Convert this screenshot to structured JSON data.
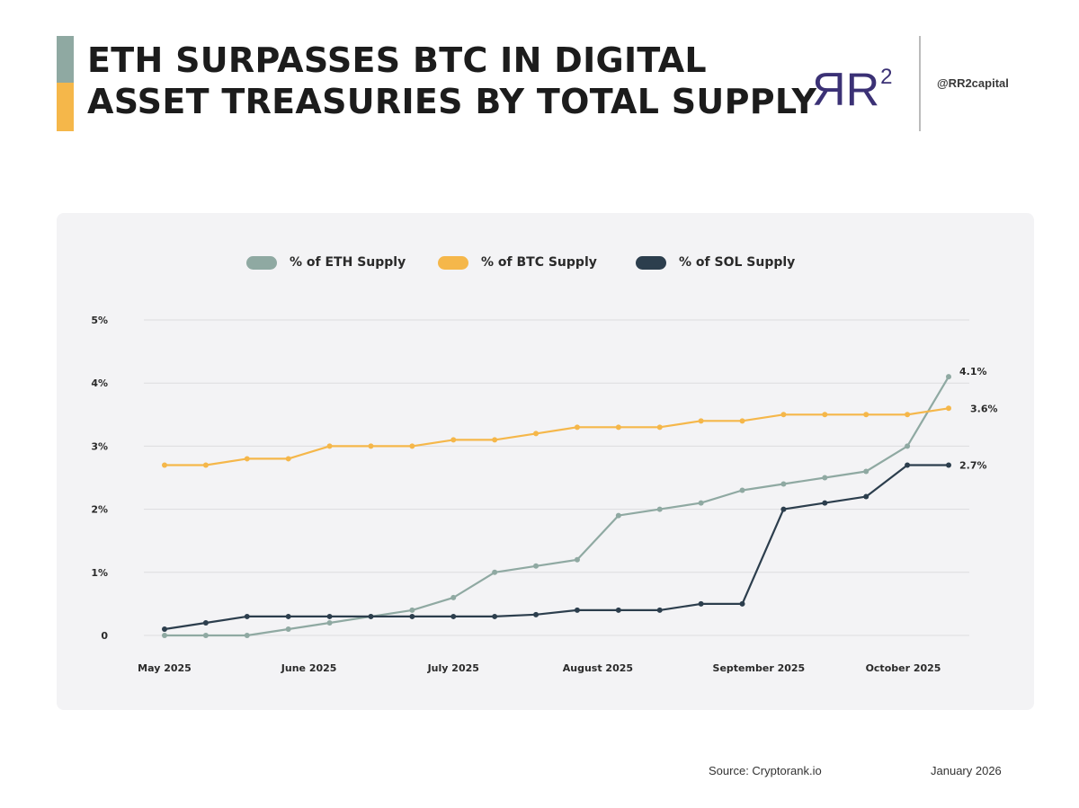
{
  "header": {
    "title_line1": "ETH SURPASSES BTC IN DIGITAL",
    "title_line2": "ASSET TREASURIES BY TOTAL SUPPLY",
    "logo_text": "RR",
    "logo_superscript": "2",
    "handle": "@RR2capital",
    "accent_colors": [
      "#8fa9a2",
      "#f5b74a"
    ],
    "brand_color": "#3b3175"
  },
  "chart_data": {
    "type": "line",
    "title": "ETH SURPASSES BTC IN DIGITAL ASSET TREASURIES BY TOTAL SUPPLY",
    "xlabel": "",
    "ylabel": "",
    "ylim": [
      0,
      5
    ],
    "y_ticks": [
      0,
      1,
      2,
      3,
      4,
      5
    ],
    "y_tick_labels": [
      "0",
      "1%",
      "2%",
      "3%",
      "4%",
      "5%"
    ],
    "x_points": 20,
    "x_tick_labels": [
      {
        "label": "May 2025",
        "index": 0
      },
      {
        "label": "June 2025",
        "index": 3.5
      },
      {
        "label": "July 2025",
        "index": 7
      },
      {
        "label": "August 2025",
        "index": 10.5
      },
      {
        "label": "September 2025",
        "index": 14.4
      },
      {
        "label": "October 2025",
        "index": 17.9
      }
    ],
    "grid": true,
    "legend_position": "top-center",
    "series": [
      {
        "name": "% of ETH Supply",
        "color": "#8fa9a2",
        "values": [
          0.0,
          0.0,
          0.0,
          0.1,
          0.2,
          0.3,
          0.4,
          0.6,
          1.0,
          1.1,
          1.2,
          1.9,
          2.0,
          2.1,
          2.3,
          2.4,
          2.5,
          2.6,
          3.0,
          4.1
        ],
        "end_label": "4.1%"
      },
      {
        "name": "% of BTC Supply",
        "color": "#f5b74a",
        "values": [
          2.7,
          2.7,
          2.8,
          2.8,
          3.0,
          3.0,
          3.0,
          3.1,
          3.1,
          3.2,
          3.3,
          3.3,
          3.3,
          3.4,
          3.4,
          3.5,
          3.5,
          3.5,
          3.5,
          3.6
        ],
        "end_label": "3.6%"
      },
      {
        "name": "% of SOL Supply",
        "color": "#2c3e4d",
        "values": [
          0.1,
          0.2,
          0.3,
          0.3,
          0.3,
          0.3,
          0.3,
          0.3,
          0.3,
          0.33,
          0.4,
          0.4,
          0.4,
          0.5,
          0.5,
          2.0,
          2.1,
          2.2,
          2.7,
          2.7
        ],
        "end_label": "2.7%"
      }
    ]
  },
  "footer": {
    "source": "Source: Cryptorank.io",
    "date": "January 2026"
  }
}
